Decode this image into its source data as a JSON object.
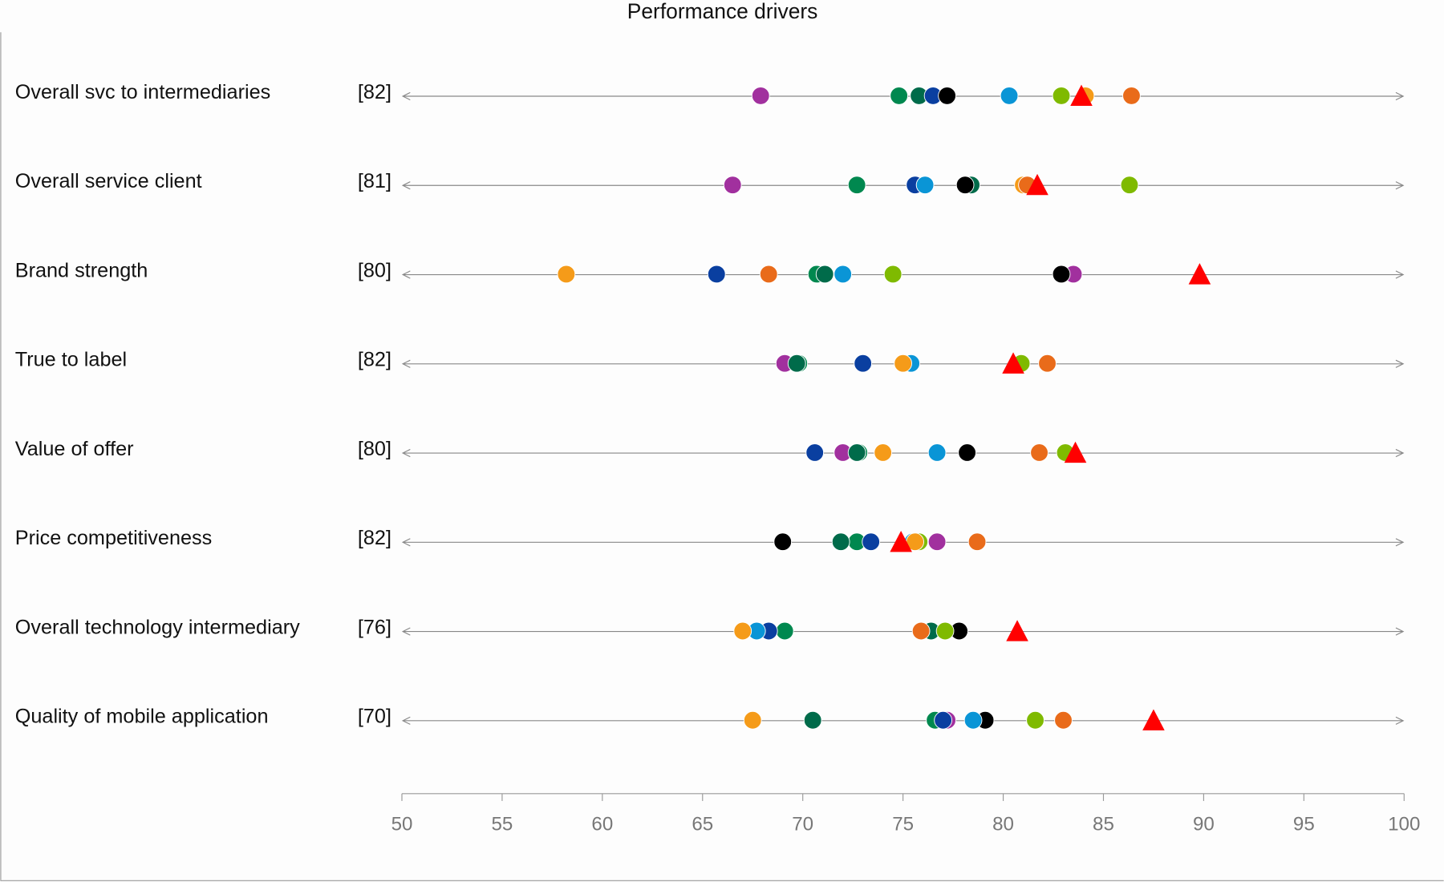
{
  "chart_data": {
    "type": "scatter",
    "title": "Performance drivers",
    "xlabel": "",
    "ylabel": "",
    "xlim": [
      50,
      100
    ],
    "x_ticks": [
      "50",
      "55",
      "60",
      "65",
      "70",
      "75",
      "80",
      "85",
      "90",
      "95",
      "100"
    ],
    "grid": false,
    "legend": "none",
    "categories": [
      "Overall svc to intermediaries",
      "Overall service client",
      "Brand strength",
      "True to label",
      "Value of offer",
      "Price competitiveness",
      "Overall technology intermediary",
      "Quality of mobile application"
    ],
    "scores": [
      "[82]",
      "[81]",
      "[80]",
      "[82]",
      "[80]",
      "[82]",
      "[76]",
      "[70]"
    ],
    "series": [
      {
        "color": "#a1309e",
        "values": [
          67.9,
          66.5,
          83.5,
          69.1,
          72.0,
          76.7,
          68.3,
          77.2
        ]
      },
      {
        "color": "#00884f",
        "values": [
          74.8,
          72.7,
          70.7,
          69.8,
          72.8,
          72.7,
          69.1,
          76.6
        ]
      },
      {
        "color": "#006b4a",
        "values": [
          75.8,
          78.4,
          71.1,
          69.7,
          72.7,
          71.9,
          76.4,
          70.5
        ]
      },
      {
        "color": "#0a3fa0",
        "values": [
          76.5,
          75.6,
          65.7,
          73.0,
          70.6,
          73.4,
          68.3,
          77.0
        ]
      },
      {
        "color": "#000000",
        "values": [
          77.2,
          78.1,
          82.9,
          null,
          78.2,
          69.0,
          77.8,
          79.1
        ]
      },
      {
        "color": "#0a95d6",
        "values": [
          80.3,
          76.1,
          72.0,
          75.4,
          76.7,
          75.5,
          67.7,
          78.5
        ]
      },
      {
        "color": "#7fba00",
        "values": [
          82.9,
          86.3,
          74.5,
          80.9,
          83.1,
          75.8,
          77.1,
          81.6
        ]
      },
      {
        "color": "#f59b19",
        "values": [
          84.1,
          81.0,
          58.2,
          75.0,
          74.0,
          75.6,
          67.0,
          67.5
        ]
      },
      {
        "color": "#e96b1a",
        "values": [
          86.4,
          81.2,
          68.3,
          82.2,
          81.8,
          78.7,
          75.9,
          83.0
        ]
      }
    ],
    "benchmark": {
      "marker": "triangle",
      "color": "#ff0000",
      "values": [
        83.9,
        81.7,
        89.8,
        80.5,
        83.6,
        74.9,
        80.7,
        87.5
      ]
    },
    "line_color": "#888888"
  }
}
